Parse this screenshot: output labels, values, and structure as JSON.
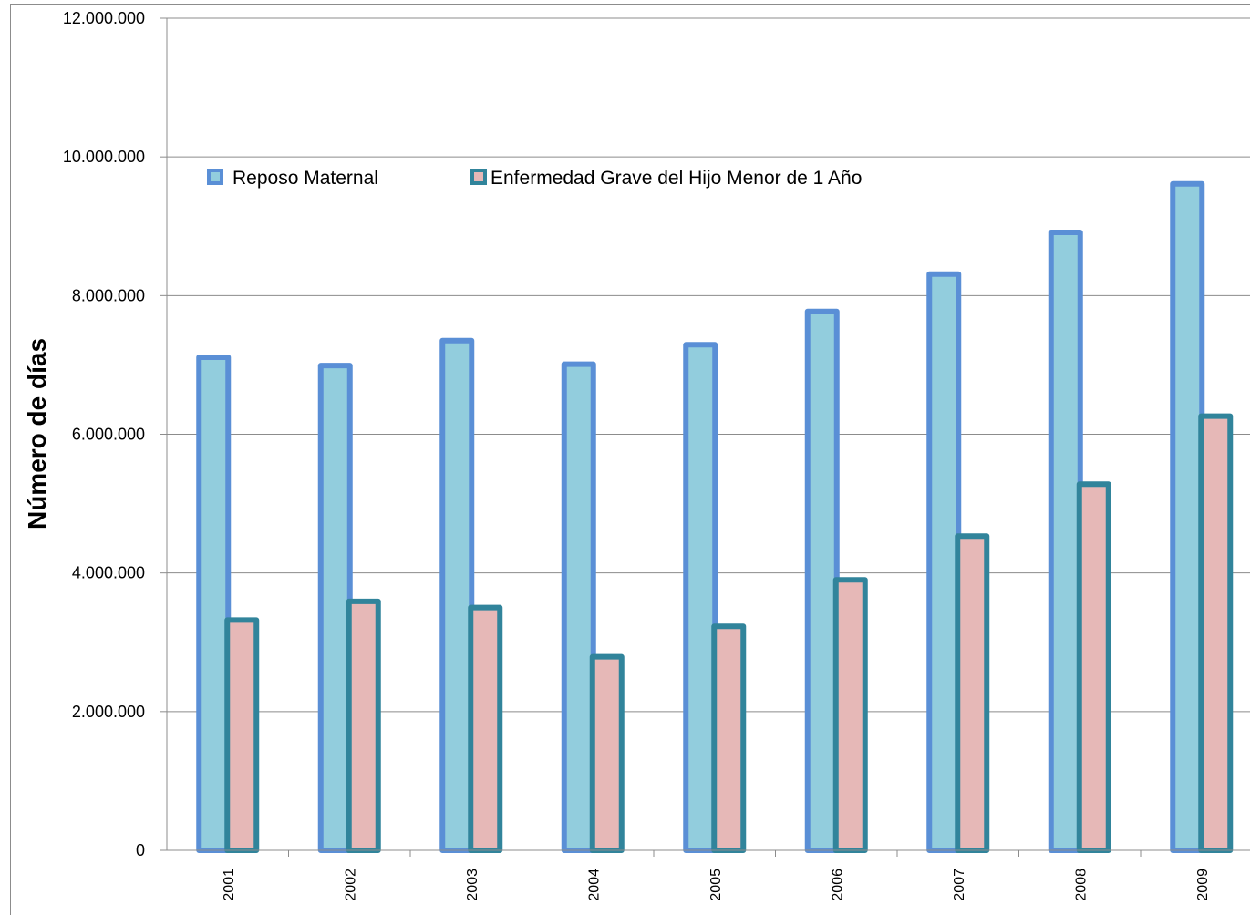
{
  "chart_data": {
    "type": "bar",
    "title": "",
    "xlabel": "",
    "ylabel": "Número de  días",
    "categories": [
      "2001",
      "2002",
      "2003",
      "2004",
      "2005",
      "2006",
      "2007",
      "2008",
      "2009"
    ],
    "series": [
      {
        "name": "Reposo Maternal",
        "values": [
          7150000,
          7030000,
          7390000,
          7050000,
          7330000,
          7810000,
          8350000,
          8950000,
          9650000
        ],
        "fill": "#92cddd",
        "stroke": "#5a8fd6"
      },
      {
        "name": "Enfermedad Grave del Hijo Menor de 1 Año",
        "values": [
          3360000,
          3630000,
          3540000,
          2830000,
          3270000,
          3940000,
          4570000,
          5320000,
          6300000
        ],
        "fill": "#e6b8b7",
        "stroke": "#31849b"
      }
    ],
    "ylim": [
      0,
      12000000
    ],
    "yticks": [
      0,
      2000000,
      4000000,
      6000000,
      8000000,
      10000000,
      12000000
    ],
    "ytick_labels": [
      "0",
      "2.000.000",
      "4.000.000",
      "6.000.000",
      "8.000.000",
      "10.000.000",
      "12.000.000"
    ],
    "grid": true,
    "legend_position": "top-left"
  }
}
